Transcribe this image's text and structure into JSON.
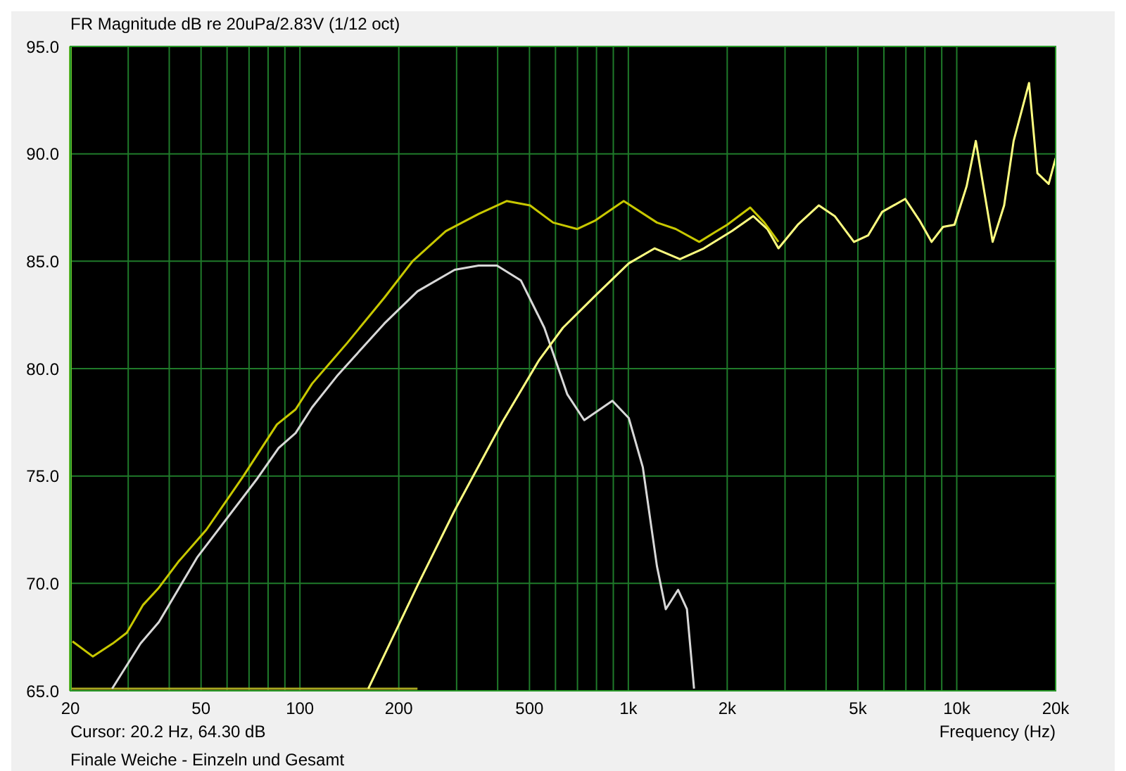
{
  "chart_data": {
    "type": "line",
    "title": "FR Magnitude dB re 20uPa/2.83V (1/12 oct)",
    "xlabel": "Frequency (Hz)",
    "annotations": [
      "Cursor: 20.2 Hz, 64.30 dB",
      "Finale Weiche - Einzeln und Gesamt"
    ],
    "log": "x",
    "grid": true,
    "marker": "none",
    "line_style": "solid",
    "xlim": [
      20,
      20000
    ],
    "ylim": [
      65,
      95
    ],
    "xticks": [
      20,
      {
        "value": 30,
        "label": null
      },
      {
        "value": 40,
        "label": null
      },
      50,
      {
        "value": 60,
        "label": null
      },
      {
        "value": 70,
        "label": null
      },
      {
        "value": 80,
        "label": null
      },
      {
        "value": 90,
        "label": null
      },
      100,
      200,
      {
        "value": 300,
        "label": null
      },
      {
        "value": 400,
        "label": null
      },
      500,
      {
        "value": 600,
        "label": null
      },
      {
        "value": 700,
        "label": null
      },
      {
        "value": 800,
        "label": null
      },
      {
        "value": 900,
        "label": null
      },
      {
        "value": 1000,
        "label": "1k"
      },
      {
        "value": 2000,
        "label": "2k"
      },
      {
        "value": 3000,
        "label": null
      },
      {
        "value": 4000,
        "label": null
      },
      {
        "value": 5000,
        "label": "5k"
      },
      {
        "value": 6000,
        "label": null
      },
      {
        "value": 7000,
        "label": null
      },
      {
        "value": 8000,
        "label": null
      },
      {
        "value": 9000,
        "label": null
      },
      {
        "value": 10000,
        "label": "10k"
      },
      {
        "value": 20000,
        "label": "20k"
      }
    ],
    "yticks": [
      {
        "value": 65,
        "label": "65.0"
      },
      {
        "value": 70,
        "label": "70.0"
      },
      {
        "value": 75,
        "label": "75.0"
      },
      {
        "value": 80,
        "label": "80.0"
      },
      {
        "value": 85,
        "label": "85.0"
      },
      {
        "value": 90,
        "label": "90.0"
      },
      {
        "value": 95,
        "label": "95.0"
      }
    ],
    "series": [
      {
        "color": "#a8a820",
        "x": [
          20,
          228
        ],
        "values": [
          65.1,
          65.1
        ]
      },
      {
        "color": "#d8d8d8",
        "x": [
          26.8,
          32.7,
          37.2,
          48.6,
          74.3,
          86.1,
          97,
          108.9,
          130.4,
          180.7,
          228,
          296,
          350,
          398,
          471,
          555,
          652,
          734,
          894,
          1003,
          1107,
          1222,
          1300,
          1417,
          1508,
          1585
        ],
        "values": [
          65.1,
          67.2,
          68.2,
          71.2,
          74.9,
          76.3,
          77.0,
          78.2,
          79.7,
          82.1,
          83.6,
          84.6,
          84.8,
          84.8,
          84.1,
          81.9,
          78.8,
          77.6,
          78.5,
          77.7,
          75.4,
          70.8,
          68.8,
          69.7,
          68.8,
          65.1
        ]
      },
      {
        "color": "#ffff80",
        "x": [
          161.5,
          228,
          296,
          413,
          535,
          632,
          794,
          1003,
          1203,
          1436,
          1698,
          2066,
          2399,
          2650,
          2865,
          3281,
          3803,
          4250,
          4865,
          5370,
          5930,
          6966,
          7700,
          8380,
          9085,
          9840,
          10720,
          11430,
          12860,
          13940,
          14900,
          16600,
          17600,
          19050,
          20000
        ],
        "values": [
          65.1,
          69.9,
          73.4,
          77.5,
          80.4,
          81.9,
          83.4,
          84.9,
          85.6,
          85.1,
          85.6,
          86.4,
          87.1,
          86.5,
          85.6,
          86.7,
          87.6,
          87.1,
          85.9,
          86.2,
          87.3,
          87.9,
          86.9,
          85.9,
          86.6,
          86.7,
          88.5,
          90.6,
          85.9,
          87.6,
          90.6,
          93.3,
          89.1,
          88.6,
          89.8
        ]
      },
      {
        "color": "#c8c800",
        "x": [
          20.3,
          23.4,
          26.9,
          29.7,
          33.3,
          37.2,
          42.6,
          51.9,
          67.3,
          85.1,
          97,
          108.9,
          139.4,
          180.7,
          220.2,
          278,
          350,
          426,
          502,
          590,
          698,
          794,
          968,
          1222,
          1394,
          1644,
          2000,
          2350,
          2594,
          2865
        ],
        "values": [
          67.3,
          66.6,
          67.2,
          67.7,
          69.0,
          69.8,
          71.0,
          72.5,
          75.0,
          77.4,
          78.1,
          79.3,
          81.2,
          83.3,
          85.0,
          86.4,
          87.2,
          87.8,
          87.6,
          86.8,
          86.5,
          86.9,
          87.8,
          86.8,
          86.5,
          85.9,
          86.7,
          87.5,
          86.8,
          85.9
        ]
      }
    ]
  }
}
